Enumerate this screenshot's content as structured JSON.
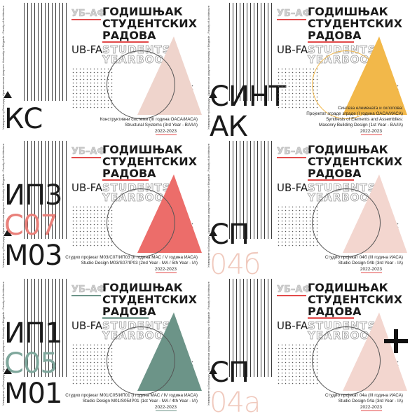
{
  "covers": [
    {
      "code_lines": [
        "КС"
      ],
      "code_colors": [
        "#1a1a1a"
      ],
      "accent": "#efd4cc",
      "underline": "#e24a4a",
      "header_small": "УБ–АФ",
      "title_line1": "ГОДИШЊАК",
      "title_line2": "СТУДЕНТСКИХ",
      "title_line3": "РАДОВА",
      "ubfa": "UB-FA",
      "students": "STUDENTS'",
      "yearbook": "YEARBOOK",
      "caption_line1": "Конструктивни системи (III година ОАСА/ИАСА)",
      "caption_line2": "Structural Systems (3rd Year - BA/IA)",
      "caption_line3": "",
      "year": "2022-2023",
      "vertical_text": "Универзитет у Београду - Архитектонски факултет  University of Belgrade - Faculty of Architecture"
    },
    {
      "code_lines": [
        "СИНТ",
        "АК"
      ],
      "code_colors": [
        "#1a1a1a",
        "#1a1a1a"
      ],
      "accent": "#f2b84a",
      "underline": "#e24a4a",
      "header_small": "УБ–АФ",
      "title_line1": "ГОДИШЊАК",
      "title_line2": "СТУДЕНТСКИХ",
      "title_line3": "РАДОВА",
      "ubfa": "UB-FA",
      "students": "STUDENTS'",
      "yearbook": "YEARBOOK",
      "caption_line1": "Синтеза елемената и склопова:",
      "caption_line2": "Пројектат зграде зграде (I година ОАСА/ИАСА)",
      "caption_line3": "Synthesis of Elements and Assemblies:",
      "caption_line4": "Masonry Building Design (1st Year - BA/IA)",
      "year": "2022-2023",
      "vertical_text": "Универзитет у Београду - Архитектонски факултет  University of Belgrade - Faculty of Architecture"
    },
    {
      "code_lines": [
        "ИП3",
        "С07",
        "М03"
      ],
      "code_colors": [
        "#1a1a1a",
        "#e9807a",
        "#1a1a1a"
      ],
      "accent": "#ec6d6a",
      "underline": "#e24a4a",
      "header_small": "УБ–АФ",
      "title_line1": "ГОДИШЊАК",
      "title_line2": "СТУДЕНТСКИХ",
      "title_line3": "РАДОВА",
      "ubfa": "UB-FA",
      "students": "STUDENTS'",
      "yearbook": "YEARBOOK",
      "caption_line1": "Студио пројекат М03/С07/ИП03 (II година МАС / V година ИАСА)",
      "caption_line2": "Studio Design M03/S07/IP03 (2nd Year - MA / 5th Year - IA)",
      "caption_line3": "",
      "year": "2022-2023",
      "vertical_text": "Универзитет у Београду - Архитектонски факултет  University of Belgrade - Faculty of Architecture"
    },
    {
      "code_lines": [
        "СП",
        "04б"
      ],
      "code_colors": [
        "#1a1a1a",
        "#f0c9bd"
      ],
      "accent": "#f3d6cf",
      "underline": "#e24a4a",
      "header_small": "УБ–АФ",
      "title_line1": "ГОДИШЊАК",
      "title_line2": "СТУДЕНТСКИХ",
      "title_line3": "РАДОВА",
      "ubfa": "UB-FA",
      "students": "STUDENTS'",
      "yearbook": "YEARBOOK",
      "caption_line1": "Студио пројекат 04б (III година ИАСА)",
      "caption_line2": "Studio Design 04b (3rd Year - IA)",
      "caption_line3": "",
      "year": "2022-2023",
      "vertical_text": "Универзитет у Београду - Архитектонски факултет  University of Belgrade - Faculty of Architecture"
    },
    {
      "code_lines": [
        "ИП1",
        "С05",
        "М01"
      ],
      "code_colors": [
        "#1a1a1a",
        "#7fa79c",
        "#1a1a1a"
      ],
      "accent": "#6c9488",
      "underline": "#6c9488",
      "header_small": "УБ–АФ",
      "title_line1": "ГОДИШЊАК",
      "title_line2": "СТУДЕНТСКИХ",
      "title_line3": "РАДОВА",
      "ubfa": "UB-FA",
      "students": "STUDENTS'",
      "yearbook": "YEARBOOK",
      "caption_line1": "Студио пројекат М01/С05/ИП01 (I година МАС / IV година ИАСА)",
      "caption_line2": "Studio Design M01/S05/IP01 (1st Year - MA / 4th Year - IA)",
      "caption_line3": "",
      "year": "2022-2023",
      "vertical_text": "Универзитет у Београду - Архитектонски факултет  University of Belgrade - Faculty of Architecture"
    },
    {
      "code_lines": [
        "СП",
        "04а"
      ],
      "code_colors": [
        "#1a1a1a",
        "#f0c9bd"
      ],
      "accent": "#f3d6cf",
      "underline": "#e24a4a",
      "header_small": "УБ–АФ",
      "title_line1": "ГОДИШЊАК",
      "title_line2": "СТУДЕНТСКИХ",
      "title_line3": "РАДОВА",
      "ubfa": "UB-FA",
      "students": "STUDENTS'",
      "yearbook": "YEARBOOK",
      "caption_line1": "Студио пројекат 04а (III година ИАСА)",
      "caption_line2": "Studio Design 04a (3rd Year - IA)",
      "caption_line3": "",
      "year": "2022-2023",
      "vertical_text": "Универзитет у Београду - Архитектонски факултет  University of Belgrade - Faculty of Architecture"
    }
  ],
  "icons": {
    "logo": "triangle-logo-icon",
    "plus": "plus-icon"
  }
}
